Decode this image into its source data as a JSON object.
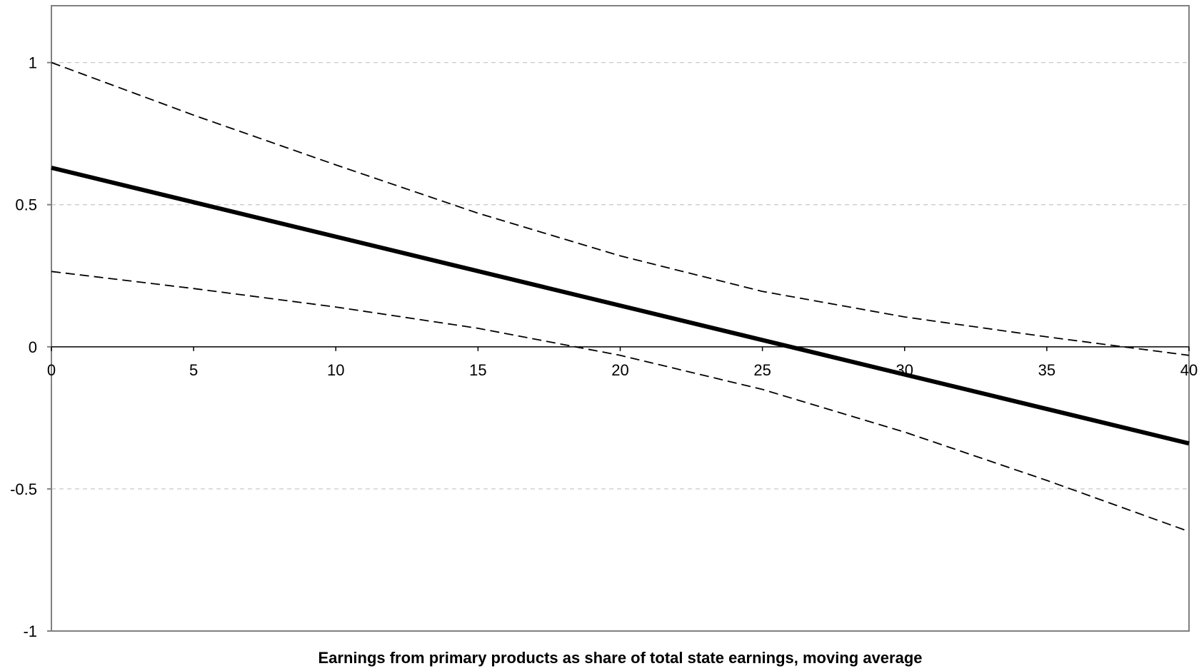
{
  "chart_data": {
    "type": "line",
    "title": "",
    "xlabel": "Earnings from primary products as share of total state earnings, moving average",
    "ylabel": "",
    "xlim": [
      0,
      40
    ],
    "ylim": [
      -1,
      1.2
    ],
    "x_ticks": [
      "0",
      "5",
      "10",
      "15",
      "20",
      "25",
      "30",
      "35",
      "40"
    ],
    "y_ticks": [
      "1",
      "0.5",
      "0",
      "-0.5",
      "-1"
    ],
    "grid": "horizontal dashed",
    "legend": "none",
    "series": [
      {
        "style": "solid-thick",
        "color": "#000000",
        "x": [
          0,
          40
        ],
        "y": [
          0.63,
          -0.34
        ]
      },
      {
        "style": "dashed",
        "color": "#000000",
        "x": [
          0,
          5,
          10,
          15,
          20,
          25,
          30,
          35,
          40
        ],
        "y": [
          1.0,
          0.815,
          0.64,
          0.47,
          0.32,
          0.195,
          0.105,
          0.035,
          -0.03
        ]
      },
      {
        "style": "dashed",
        "color": "#000000",
        "x": [
          0,
          5,
          10,
          15,
          20,
          25,
          30,
          35,
          40
        ],
        "y": [
          0.265,
          0.205,
          0.14,
          0.065,
          -0.03,
          -0.15,
          -0.3,
          -0.47,
          -0.65
        ]
      }
    ]
  }
}
